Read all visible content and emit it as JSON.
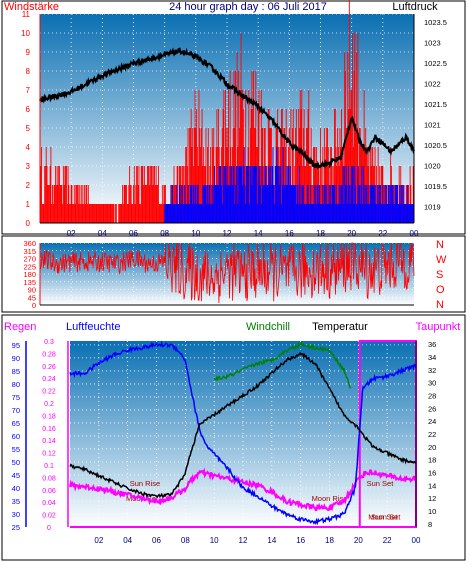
{
  "colors": {
    "red": "#ff0000",
    "blue": "#0000ff",
    "black": "#000000",
    "green": "#008000",
    "magenta": "#ff00ff",
    "darkred": "#990000",
    "navy": "#000080",
    "grad_top": "#0a6fb2",
    "grad_bottom": "#ffffff"
  },
  "panel1": {
    "left_title": "Windstärke",
    "center_title": "24 hour graph day : 06 Juli 2017",
    "right_title": "Luftdruck"
  },
  "panel2": {
    "compass": [
      "N",
      "W",
      "S",
      "O",
      "N"
    ]
  },
  "panel3": {
    "headers": [
      "Regen",
      "Luftfeuchte",
      "Windchill",
      "Temperatur",
      "Taupunkt"
    ],
    "events": [
      {
        "label": "Moon Set",
        "x": 5.0,
        "lev": 0.04
      },
      {
        "label": "Sun Rise",
        "x": 5.2,
        "lev": 0.12
      },
      {
        "label": "Moon Rise",
        "x": 18.0,
        "lev": 0.04
      },
      {
        "label": "Sun Set",
        "x": 21.5,
        "lev": 0.12
      },
      {
        "label": "Sun Set",
        "x": 21.8,
        "lev": -0.06
      },
      {
        "label": "Moon Set",
        "x": 21.8,
        "lev": -0.06
      }
    ]
  },
  "chart_data": [
    {
      "type": "line",
      "title": "24 hour graph day : 06 Juli 2017",
      "xlim": [
        0,
        24
      ],
      "x_ticks": [
        "02",
        "04",
        "06",
        "08",
        "10",
        "12",
        "14",
        "16",
        "18",
        "20",
        "22",
        "00"
      ],
      "left_axis": {
        "label": "Windstärke",
        "ylim": [
          0,
          11
        ],
        "ticks": [
          0,
          1,
          2,
          3,
          4,
          5,
          6,
          7,
          8,
          9,
          10,
          11
        ]
      },
      "right_axis": {
        "label": "Luftdruck",
        "ylim": [
          1018.6,
          1023.7
        ],
        "ticks": [
          "1019",
          "1019.5",
          "1020",
          "1020.5",
          "1021",
          "1021.5",
          "1022",
          "1022.5",
          "1023",
          "1023.5"
        ]
      },
      "series": [
        {
          "name": "Luftdruck",
          "axis": "right",
          "x": [
            0,
            1,
            2,
            3,
            4,
            5,
            6,
            7,
            8,
            9,
            10,
            11,
            12,
            13,
            14,
            15,
            16,
            17,
            17.6,
            18.5,
            19.3,
            19.6,
            20,
            20.5,
            21,
            21.5,
            22,
            22.5,
            23,
            23.5,
            24
          ],
          "values": [
            1021.6,
            1021.7,
            1021.8,
            1022.0,
            1022.2,
            1022.35,
            1022.5,
            1022.6,
            1022.7,
            1022.8,
            1022.65,
            1022.4,
            1022.0,
            1021.7,
            1021.45,
            1021.05,
            1020.55,
            1020.25,
            1020.0,
            1020.05,
            1020.2,
            1020.6,
            1021.2,
            1020.6,
            1020.35,
            1020.7,
            1020.55,
            1020.35,
            1020.5,
            1020.7,
            1020.35
          ]
        },
        {
          "name": "Windstärke (Böen)",
          "axis": "left",
          "x": [
            0,
            1,
            2,
            3,
            4,
            5,
            6,
            7,
            8,
            9,
            10,
            11,
            12,
            13,
            14,
            15,
            16,
            17,
            18,
            19,
            20,
            21,
            22,
            23,
            24
          ],
          "values": [
            3,
            3,
            2,
            2,
            1,
            1,
            3,
            3,
            2,
            3,
            6,
            4,
            7,
            8,
            7,
            5,
            5,
            6,
            4,
            5,
            11,
            4,
            3,
            3,
            2
          ]
        },
        {
          "name": "Windstärke",
          "axis": "left",
          "x": [
            0,
            1,
            2,
            3,
            4,
            5,
            6,
            7,
            8,
            9,
            10,
            11,
            12,
            13,
            14,
            15,
            16,
            17,
            18,
            19,
            20,
            21,
            22,
            23,
            24
          ],
          "values": [
            0,
            0,
            0,
            0,
            0,
            0,
            0,
            0,
            1,
            2,
            2,
            2,
            3,
            3,
            3,
            3,
            3,
            2,
            2,
            2,
            3,
            2,
            2,
            2,
            1
          ]
        }
      ]
    },
    {
      "type": "scatter",
      "title": "",
      "xlim": [
        0,
        24
      ],
      "ylim": [
        0,
        360
      ],
      "y_ticks": [
        0,
        45,
        90,
        135,
        180,
        225,
        270,
        315,
        360
      ],
      "series": [
        {
          "name": "Windrichtung",
          "x": [
            0,
            1,
            2,
            3,
            4,
            5,
            6,
            7,
            8,
            9,
            10,
            11,
            12,
            13,
            14,
            15,
            16,
            17,
            18,
            19,
            20,
            21,
            22,
            23,
            24
          ],
          "values": [
            270,
            240,
            250,
            250,
            250,
            240,
            270,
            240,
            250,
            200,
            180,
            160,
            200,
            180,
            200,
            190,
            180,
            200,
            210,
            200,
            250,
            200,
            220,
            250,
            260
          ]
        }
      ]
    },
    {
      "type": "line",
      "title": "",
      "xlim": [
        0,
        24
      ],
      "x_ticks": [
        "02",
        "04",
        "06",
        "08",
        "10",
        "12",
        "14",
        "16",
        "18",
        "20",
        "22",
        "00"
      ],
      "left_axes": [
        {
          "label": "Luftfeuchte",
          "ylim": [
            25,
            96.5
          ],
          "ticks": [
            25,
            30,
            35,
            40,
            45,
            50,
            55,
            60,
            65,
            70,
            75,
            80,
            85,
            90,
            95
          ]
        },
        {
          "label": "Regen",
          "ylim": [
            0,
            0.3
          ],
          "ticks": [
            "0",
            "0.02",
            "0.04",
            "0.06",
            "0.08",
            "0.1",
            "0.12",
            "0.14",
            "0.16",
            "0.18",
            "0.2",
            "0.22",
            "0.24",
            "0.26",
            "0.28",
            "0.3"
          ]
        }
      ],
      "right_axis": {
        "label": "Temperatur",
        "ylim": [
          7.5,
          36.5
        ],
        "ticks": [
          8,
          10,
          12,
          14,
          16,
          18,
          20,
          22,
          24,
          26,
          28,
          30,
          32,
          34,
          36
        ]
      },
      "series": [
        {
          "name": "Luftfeuchte",
          "axis": "left",
          "x": [
            0,
            1,
            1.5,
            2,
            3,
            4,
            5,
            6,
            7,
            7.5,
            8,
            8.5,
            9,
            9.5,
            10,
            11,
            12,
            13,
            14,
            15,
            16,
            17,
            18,
            19,
            19.8,
            20,
            20.3,
            21,
            22,
            23,
            24
          ],
          "values": [
            84,
            84,
            86,
            88,
            91,
            93,
            94,
            95,
            95,
            93,
            89,
            75,
            62,
            56,
            53,
            47,
            40,
            37,
            33,
            30,
            28,
            27,
            28,
            30,
            40,
            56,
            78,
            82,
            83,
            85,
            87
          ]
        },
        {
          "name": "Windchill",
          "axis": "right",
          "x": [
            10,
            11,
            12,
            13,
            14,
            15,
            16,
            17,
            18,
            19,
            19.5
          ],
          "values": [
            30.5,
            31,
            32,
            33,
            33.5,
            35,
            36,
            35.5,
            35,
            32,
            29
          ]
        },
        {
          "name": "Temperatur",
          "axis": "right",
          "x": [
            0,
            1,
            2,
            3,
            4,
            5,
            6,
            7,
            7.5,
            8,
            8.5,
            9,
            10,
            11,
            12,
            13,
            14,
            15,
            16,
            17,
            18,
            19,
            19.5,
            20,
            20.3,
            21,
            22,
            23,
            24
          ],
          "values": [
            17,
            16.5,
            15.5,
            14.5,
            13.5,
            12.7,
            12.3,
            12.5,
            14,
            16,
            20,
            23.5,
            25,
            26.5,
            28,
            29.5,
            31.5,
            33.5,
            34.5,
            33,
            29,
            25,
            24,
            23,
            22,
            20,
            19,
            18,
            17.5
          ]
        },
        {
          "name": "Taupunkt",
          "axis": "right",
          "x": [
            0,
            1,
            2,
            3,
            4,
            5,
            6,
            7,
            8,
            8.5,
            9,
            10,
            11,
            12,
            13,
            14,
            15,
            16,
            17,
            18,
            19,
            20,
            20.5,
            21,
            22,
            23,
            24
          ],
          "values": [
            14,
            13.8,
            13.5,
            13,
            12.5,
            12,
            11.5,
            12,
            13.5,
            15,
            16,
            15.5,
            15,
            14.5,
            14,
            13,
            11.5,
            11,
            10.5,
            10.5,
            11.5,
            15,
            16,
            16,
            15.5,
            15,
            15
          ]
        }
      ]
    }
  ]
}
